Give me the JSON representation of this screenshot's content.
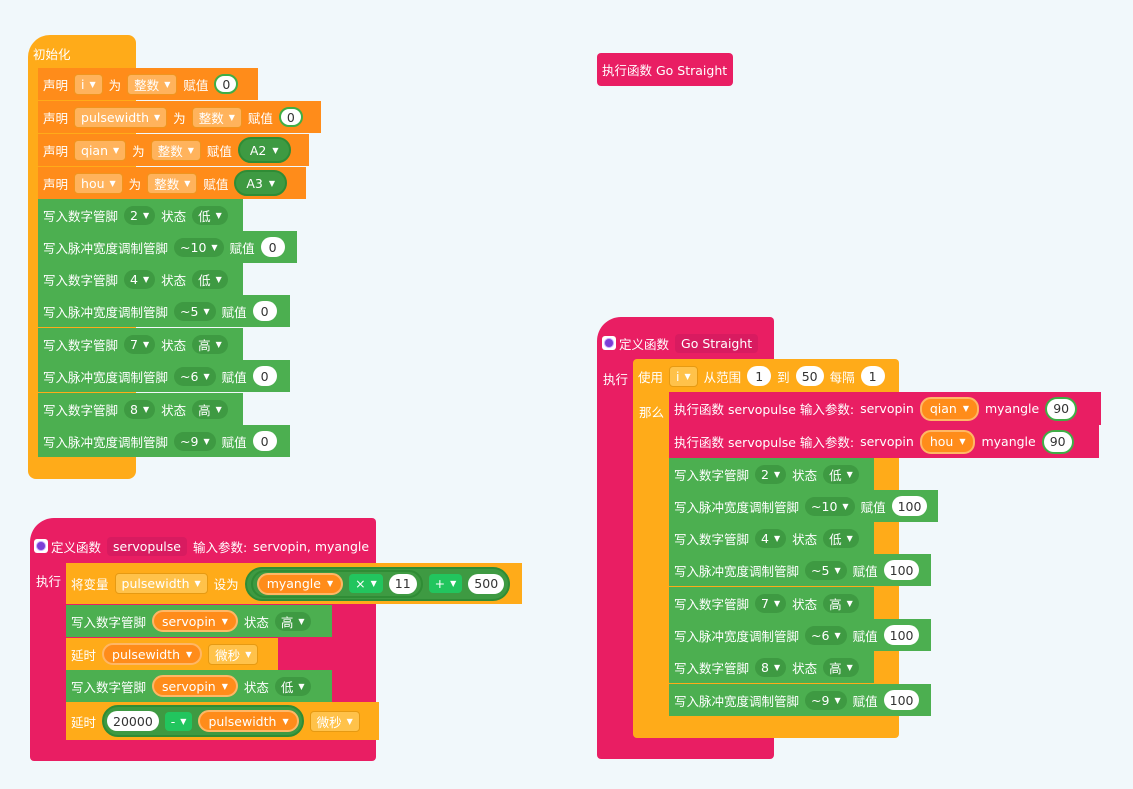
{
  "init": {
    "hat": "初始化",
    "decls": [
      {
        "kw_declare": "声明",
        "name": "i",
        "kw_as": "为",
        "type": "整数",
        "kw_assign": "赋值",
        "value": "0"
      },
      {
        "kw_declare": "声明",
        "name": "pulsewidth",
        "kw_as": "为",
        "type": "整数",
        "kw_assign": "赋值",
        "value": "0"
      },
      {
        "kw_declare": "声明",
        "name": "qian",
        "kw_as": "为",
        "type": "整数",
        "kw_assign": "赋值",
        "value": "A2"
      },
      {
        "kw_declare": "声明",
        "name": "hou",
        "kw_as": "为",
        "type": "整数",
        "kw_assign": "赋值",
        "value": "A3"
      }
    ],
    "io": [
      {
        "label": "写入数字管脚",
        "pin": "2",
        "kw": "状态",
        "value": "低"
      },
      {
        "label": "写入脉冲宽度调制管脚",
        "pin": "~10",
        "kw": "赋值",
        "value": "0"
      },
      {
        "label": "写入数字管脚",
        "pin": "4",
        "kw": "状态",
        "value": "低"
      },
      {
        "label": "写入脉冲宽度调制管脚",
        "pin": "~5",
        "kw": "赋值",
        "value": "0"
      },
      {
        "label": "写入数字管脚",
        "pin": "7",
        "kw": "状态",
        "value": "高"
      },
      {
        "label": "写入脉冲宽度调制管脚",
        "pin": "~6",
        "kw": "赋值",
        "value": "0"
      },
      {
        "label": "写入数字管脚",
        "pin": "8",
        "kw": "状态",
        "value": "高"
      },
      {
        "label": "写入脉冲宽度调制管脚",
        "pin": "~9",
        "kw": "赋值",
        "value": "0"
      }
    ]
  },
  "call_go": {
    "label": "执行函数 Go Straight"
  },
  "servo_def": {
    "kw_define": "定义函数",
    "name": "servopulse",
    "params_label": "输入参数:",
    "params": "servopin, myangle",
    "exec": "执行",
    "setvar": {
      "kw": "将变量",
      "var": "pulsewidth",
      "kw_to": "设为",
      "a": "myangle",
      "op1": "×",
      "b": "11",
      "op2": "+",
      "c": "500"
    },
    "write_high": {
      "label": "写入数字管脚",
      "pin": "servopin",
      "kw": "状态",
      "value": "高"
    },
    "delay1": {
      "kw": "延时",
      "var": "pulsewidth",
      "unit": "微秒"
    },
    "write_low": {
      "label": "写入数字管脚",
      "pin": "servopin",
      "kw": "状态",
      "value": "低"
    },
    "delay2": {
      "kw": "延时",
      "a": "20000",
      "op": "-",
      "var": "pulsewidth",
      "unit": "微秒"
    }
  },
  "go_def": {
    "kw_define": "定义函数",
    "name": "Go Straight",
    "exec": "执行",
    "loop": {
      "kw_use": "使用",
      "var": "i",
      "kw_from": "从范围",
      "start": "1",
      "kw_to": "到",
      "end": "50",
      "kw_step": "每隔",
      "step": "1",
      "kw_then": "那么"
    },
    "calls": [
      {
        "label": "执行函数 servopulse 输入参数:",
        "p1": "servopin",
        "v1": "qian",
        "p2": "myangle",
        "v2": "90"
      },
      {
        "label": "执行函数 servopulse 输入参数:",
        "p1": "servopin",
        "v1": "hou",
        "p2": "myangle",
        "v2": "90"
      }
    ],
    "io": [
      {
        "label": "写入数字管脚",
        "pin": "2",
        "kw": "状态",
        "value": "低"
      },
      {
        "label": "写入脉冲宽度调制管脚",
        "pin": "~10",
        "kw": "赋值",
        "value": "100"
      },
      {
        "label": "写入数字管脚",
        "pin": "4",
        "kw": "状态",
        "value": "低"
      },
      {
        "label": "写入脉冲宽度调制管脚",
        "pin": "~5",
        "kw": "赋值",
        "value": "100"
      },
      {
        "label": "写入数字管脚",
        "pin": "7",
        "kw": "状态",
        "value": "高"
      },
      {
        "label": "写入脉冲宽度调制管脚",
        "pin": "~6",
        "kw": "赋值",
        "value": "100"
      },
      {
        "label": "写入数字管脚",
        "pin": "8",
        "kw": "状态",
        "value": "高"
      },
      {
        "label": "写入脉冲宽度调制管脚",
        "pin": "~9",
        "kw": "赋值",
        "value": "100"
      }
    ]
  },
  "colors": {
    "setup": "#ffab19",
    "variable": "#ff8c1a",
    "io": "#4caf50",
    "function": "#e91e63",
    "canvas": "#f1f8fb"
  },
  "icons": {
    "function_define": "gear-icon",
    "dropdown": "triangle-down-icon"
  }
}
